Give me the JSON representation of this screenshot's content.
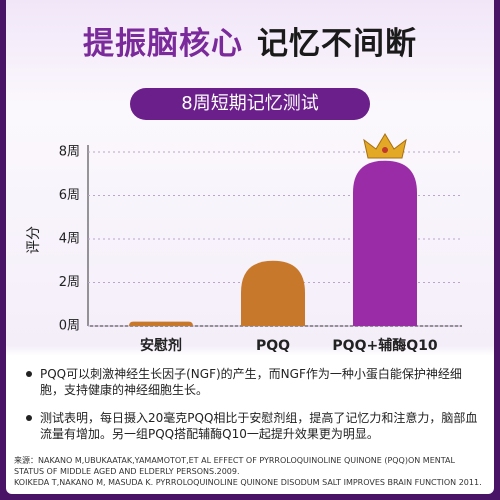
{
  "header": {
    "title_left": "提振脑核心",
    "title_right": "记忆不间断"
  },
  "chart_data": {
    "type": "bar",
    "title": "8周短期记忆测试",
    "y_label": "评分",
    "categories": [
      "安慰剂",
      "PQQ",
      "PQQ+辅酶Q10"
    ],
    "values": [
      0.2,
      3,
      7.6
    ],
    "colors": [
      "#c8782a",
      "#c8782a",
      "#9a2ca8"
    ],
    "ylim": [
      0,
      8
    ],
    "yticks": [
      {
        "value": 0,
        "label": "0周"
      },
      {
        "value": 2,
        "label": "2周"
      },
      {
        "value": 4,
        "label": "4周"
      },
      {
        "value": 6,
        "label": "6周"
      },
      {
        "value": 8,
        "label": "8周"
      }
    ],
    "grid": true
  },
  "notes": [
    "PQQ可以刺激神经生长因子(NGF)的产生，而NGF作为一种小蛋白能保护神经细胞，支持健康的神经细胞生长。",
    "测试表明，每日摄入20毫克PQQ相比于安慰剂组，提高了记忆力和注意力，脑部血流量有增加。另一组PQQ搭配辅酶Q10一起提升效果更为明显。"
  ],
  "source": [
    "来源：NAKANO M,UBUKAATAK,YAMAMOTOT,ET AL EFFECT OF PYRROLOQUINOLINE QUINONE (PQQ)ON MENTAL STATUS OF MIDDLE AGED AND ELDERLY PERSONS.2009.",
    "KOIKEDA T,NAKANO M, MASUDA K. PYRROLOQUINOLINE QUINONE DISODUM SALT IMPROVES BRAIN FUNCTION 2011."
  ]
}
